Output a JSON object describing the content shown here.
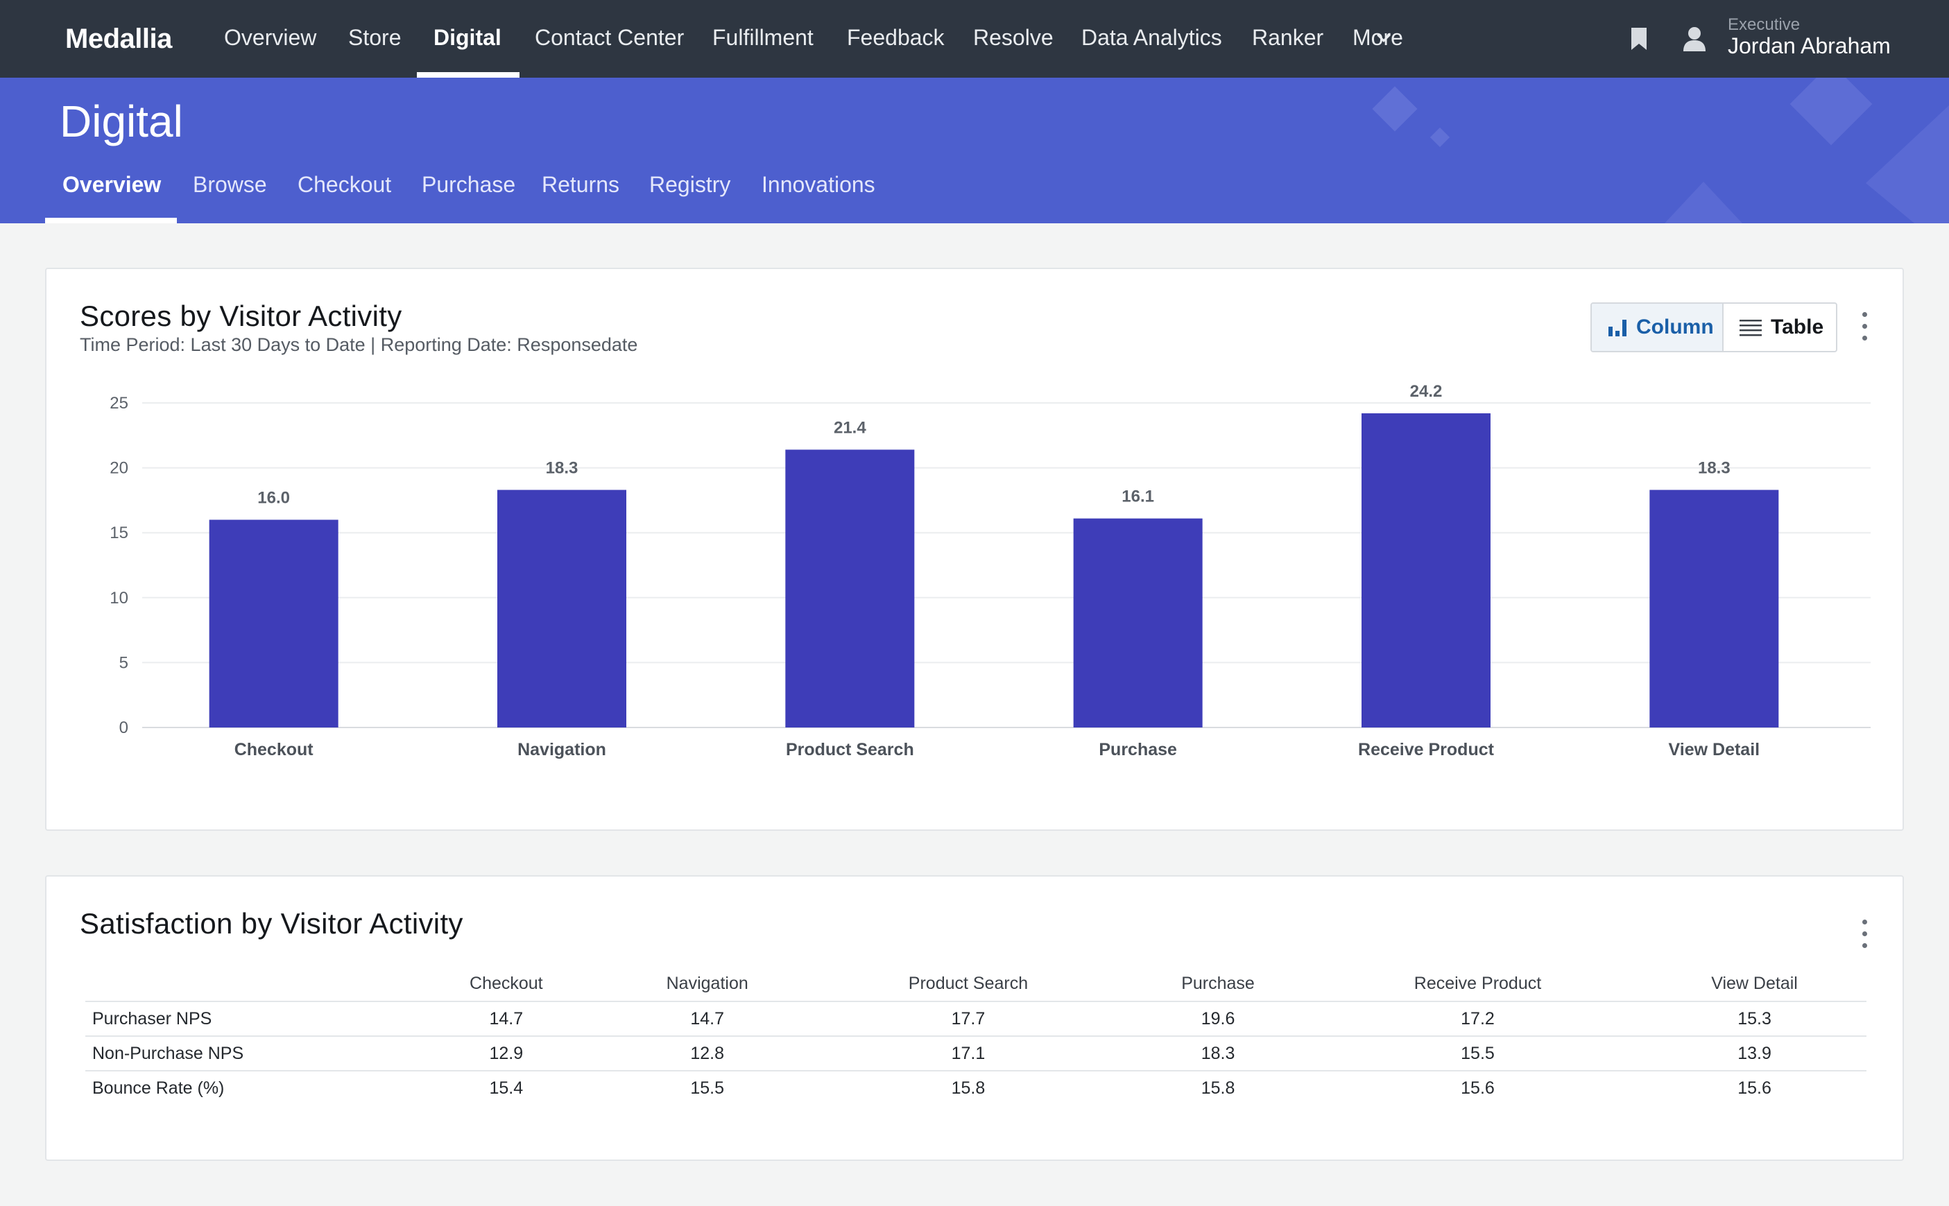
{
  "app": {
    "brand": "Medallia"
  },
  "topnav": {
    "items": [
      {
        "label": "Overview"
      },
      {
        "label": "Store"
      },
      {
        "label": "Digital"
      },
      {
        "label": "Contact Center"
      },
      {
        "label": "Fulfillment"
      },
      {
        "label": "Feedback"
      },
      {
        "label": "Resolve"
      },
      {
        "label": "Data Analytics"
      },
      {
        "label": "Ranker"
      },
      {
        "label": "More"
      }
    ],
    "active": "Digital",
    "user": {
      "role": "Executive",
      "name": "Jordan Abraham"
    }
  },
  "page": {
    "title": "Digital",
    "tabs": [
      {
        "label": "Overview"
      },
      {
        "label": "Browse"
      },
      {
        "label": "Checkout"
      },
      {
        "label": "Purchase"
      },
      {
        "label": "Returns"
      },
      {
        "label": "Registry"
      },
      {
        "label": "Innovations"
      }
    ],
    "active_tab": "Overview"
  },
  "scores_card": {
    "title": "Scores by Visitor Activity",
    "subtitle": "Time Period: Last 30 Days to Date | Reporting Date: Responsedate",
    "view_toggle": {
      "column_label": "Column",
      "table_label": "Table",
      "selected": "Column"
    }
  },
  "chart_data": {
    "type": "bar",
    "categories": [
      "Checkout",
      "Navigation",
      "Product Search",
      "Purchase",
      "Receive Product",
      "View Detail"
    ],
    "values": [
      16.0,
      18.3,
      21.4,
      16.1,
      24.2,
      18.3
    ],
    "value_labels": [
      "16.0",
      "18.3",
      "21.4",
      "16.1",
      "24.2",
      "18.3"
    ],
    "title": "Scores by Visitor Activity",
    "xlabel": "",
    "ylabel": "",
    "ylim": [
      0,
      25
    ],
    "yticks": [
      "0",
      "5",
      "10",
      "15",
      "20",
      "25"
    ],
    "grid": true,
    "color": "#3e3db8"
  },
  "satisfaction_card": {
    "title": "Satisfaction by Visitor Activity",
    "columns": [
      "Checkout",
      "Navigation",
      "Product Search",
      "Purchase",
      "Receive Product",
      "View Detail"
    ],
    "rows": [
      {
        "label": "Purchaser NPS",
        "values": [
          "14.7",
          "14.7",
          "17.7",
          "19.6",
          "17.2",
          "15.3"
        ]
      },
      {
        "label": "Non-Purchase NPS",
        "values": [
          "12.9",
          "12.8",
          "17.1",
          "18.3",
          "15.5",
          "13.9"
        ]
      },
      {
        "label": "Bounce Rate (%)",
        "values": [
          "15.4",
          "15.5",
          "15.8",
          "15.8",
          "15.6",
          "15.6"
        ]
      }
    ]
  },
  "colors": {
    "topnav_bg": "#2e3641",
    "banner_bg": "#4d5fce",
    "bar": "#3e3db8",
    "toggle_active_text": "#1a5fa8"
  }
}
